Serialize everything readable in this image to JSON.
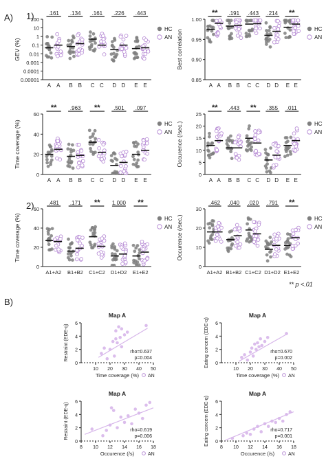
{
  "labels": {
    "panel_a": "A)",
    "sub_1": "1)",
    "sub_2": "2)",
    "panel_b": "B)",
    "significance_note": "** p <.01"
  },
  "colors": {
    "hc": "#7f7f7f",
    "an": "#d7b6ea",
    "an_edge": "#b98fd6",
    "line": "#111111"
  },
  "chart_data": [
    {
      "id": "gev",
      "type": "scatter",
      "ylabel": "GEV (%)",
      "scale": "log",
      "ylim": [
        1e-05,
        100
      ],
      "yticks": [
        "0.00001",
        "0.0001",
        "0.001",
        "0.01",
        "0.1",
        "1",
        "10",
        "100"
      ],
      "categories": [
        "A",
        "A",
        "B",
        "B",
        "C",
        "C",
        "D",
        "D",
        "E",
        "E"
      ],
      "pairs": [
        ".161",
        ".134",
        ".161",
        ".226",
        ".443"
      ],
      "legend": [
        "HC",
        "AN"
      ],
      "series": [
        {
          "name": "HC",
          "medians": [
            0.05,
            0.07,
            0.5,
            0.03,
            0.04
          ]
        },
        {
          "name": "AN",
          "medians": [
            0.1,
            0.15,
            0.1,
            0.1,
            0.05
          ]
        }
      ]
    },
    {
      "id": "bestcorr",
      "type": "scatter",
      "ylabel": "Best correlation",
      "ylim": [
        0.85,
        1.0
      ],
      "yticks": [
        "0.85",
        "0.90",
        "0.95",
        "1.00"
      ],
      "categories": [
        "A",
        "A",
        "B",
        "B",
        "C",
        "C",
        "D",
        "D",
        "E",
        "E"
      ],
      "pairs": [
        "**",
        ".191",
        ".443",
        ".214",
        "**"
      ],
      "legend": [
        "HC",
        "AN"
      ],
      "series": [
        {
          "name": "HC",
          "medians": [
            0.975,
            0.983,
            0.988,
            0.96,
            0.98
          ]
        },
        {
          "name": "AN",
          "medians": [
            0.99,
            0.985,
            0.989,
            0.97,
            0.988
          ]
        }
      ]
    },
    {
      "id": "timecov1",
      "type": "scatter",
      "ylabel": "Time coverage (%)",
      "ylim": [
        0,
        60
      ],
      "yticks": [
        "0",
        "20",
        "40",
        "60"
      ],
      "categories": [
        "A",
        "A",
        "B",
        "B",
        "C",
        "C",
        "D",
        "D",
        "E",
        "E"
      ],
      "pairs": [
        "**",
        ".963",
        "**",
        ".501",
        ".097"
      ],
      "legend": [
        "HC",
        "AN"
      ],
      "series": [
        {
          "name": "HC",
          "medians": [
            20,
            18,
            32,
            9,
            20
          ]
        },
        {
          "name": "AN",
          "medians": [
            25,
            19,
            22,
            12,
            24
          ]
        }
      ]
    },
    {
      "id": "occ1",
      "type": "scatter",
      "ylabel": "Occurence (/sec.)",
      "ylim": [
        0,
        25
      ],
      "yticks": [
        "0",
        "5",
        "10",
        "15",
        "20",
        "25"
      ],
      "categories": [
        "A",
        "A",
        "B",
        "B",
        "C",
        "C",
        "D",
        "D",
        "E",
        "E"
      ],
      "pairs": [
        "**",
        ".443",
        "**",
        ".355",
        ".011"
      ],
      "legend": [
        "HC",
        "AN"
      ],
      "series": [
        {
          "name": "HC",
          "medians": [
            12,
            11,
            15,
            6,
            12
          ]
        },
        {
          "name": "AN",
          "medians": [
            14,
            11,
            13,
            8,
            14
          ]
        }
      ]
    },
    {
      "id": "timecov2",
      "type": "scatter",
      "ylabel": "Time coverage (%)",
      "ylim": [
        0,
        60
      ],
      "yticks": [
        "0",
        "20",
        "40",
        "60"
      ],
      "categories": [
        "A1+A2",
        "B1+B2",
        "C1+C2",
        "D1+D2",
        "E1+E2"
      ],
      "pairs": [
        ".481",
        ".171",
        "**",
        "1.000",
        "**"
      ],
      "legend": [
        "HC",
        "AN"
      ],
      "series": [
        {
          "name": "HC",
          "medians": [
            27,
            16,
            31,
            11,
            11
          ]
        },
        {
          "name": "AN",
          "medians": [
            26,
            19,
            21,
            13,
            15
          ]
        }
      ]
    },
    {
      "id": "occ2",
      "type": "scatter",
      "ylabel": "Occurence (/sec.)",
      "ylim": [
        0,
        30
      ],
      "yticks": [
        "0",
        "10",
        "20",
        "30"
      ],
      "categories": [
        "A1+A2",
        "B1+B2",
        "C1+C2",
        "D1+D2",
        "E1+E2"
      ],
      "pairs": [
        ".462",
        ".040",
        ".020",
        ".791",
        "**"
      ],
      "legend": [
        "HC",
        "AN"
      ],
      "series": [
        {
          "name": "HC",
          "medians": [
            18,
            14,
            19,
            9,
            11
          ]
        },
        {
          "name": "AN",
          "medians": [
            18,
            16,
            17,
            11,
            15
          ]
        }
      ]
    },
    {
      "id": "b1",
      "type": "scatter",
      "title": "Map A",
      "xlabel": "Time coverage (%)",
      "ylabel": "Restraint (EDE-q)",
      "xlim": [
        0,
        50
      ],
      "ylim": [
        0,
        6
      ],
      "xticks": [
        "10",
        "20",
        "30",
        "40",
        "50"
      ],
      "yticks": [
        "0",
        "2",
        "4",
        "6"
      ],
      "stat_rho": "rho=0.637",
      "stat_p": "p=0.004",
      "legend": "AN",
      "x": [
        14,
        16,
        18,
        20,
        22,
        23,
        24,
        24,
        25,
        26,
        27,
        28,
        28,
        30,
        32,
        45
      ],
      "y": [
        1.4,
        2.2,
        0.6,
        2.0,
        3.2,
        1.0,
        4.8,
        3.6,
        3.0,
        5.4,
        3.8,
        2.4,
        5.1,
        4.2,
        4.6,
        5.6
      ],
      "fit": [
        [
          12,
          0.8
        ],
        [
          46,
          5.2
        ]
      ]
    },
    {
      "id": "b2",
      "type": "scatter",
      "title": "Map A",
      "xlabel": "Time coverage (%)",
      "ylabel": "Eating concern (EDE-q)",
      "xlim": [
        0,
        50
      ],
      "ylim": [
        0,
        6
      ],
      "xticks": [
        "10",
        "20",
        "30",
        "40",
        "50"
      ],
      "yticks": [
        "0",
        "2",
        "4",
        "6"
      ],
      "stat_rho": "rho=0.670",
      "stat_p": "p=0.002",
      "legend": "AN",
      "x": [
        14,
        16,
        18,
        20,
        21,
        22,
        23,
        24,
        25,
        26,
        27,
        28,
        30,
        32,
        45
      ],
      "y": [
        0.8,
        1.2,
        0.4,
        1.6,
        2.2,
        1.0,
        2.8,
        2.0,
        3.0,
        2.4,
        3.6,
        2.6,
        3.2,
        3.8,
        4.4
      ],
      "fit": [
        [
          12,
          0.2
        ],
        [
          46,
          4.4
        ]
      ]
    },
    {
      "id": "b3",
      "type": "scatter",
      "title": "Map A",
      "xlabel": "Occurence (/s)",
      "ylabel": "Restraint (EDE-q)",
      "xlim": [
        8,
        18
      ],
      "ylim": [
        0,
        6
      ],
      "xticks": [
        "8",
        "10",
        "12",
        "14",
        "16",
        "18"
      ],
      "yticks": [
        "0",
        "2",
        "4",
        "6"
      ],
      "stat_rho": "rho=0.619",
      "stat_p": "p=0.006",
      "legend": "AN",
      "x": [
        9.5,
        11,
        11.5,
        12,
        12.5,
        13,
        13.5,
        14,
        14.5,
        15,
        15.5,
        16,
        16.5,
        17,
        17.5,
        12.2
      ],
      "y": [
        1.8,
        0.8,
        1.6,
        2.4,
        4.6,
        2.0,
        3.6,
        2.8,
        3.8,
        2.6,
        4.8,
        4.2,
        3.4,
        5.4,
        5.8,
        5.0
      ],
      "fit": [
        [
          8.5,
          1.0
        ],
        [
          18,
          5.0
        ]
      ]
    },
    {
      "id": "b4",
      "type": "scatter",
      "title": "Map A",
      "xlabel": "Occurence (/s)",
      "ylabel": "Eating concern (EDE-q)",
      "xlim": [
        8,
        18
      ],
      "ylim": [
        0,
        6
      ],
      "xticks": [
        "8",
        "10",
        "12",
        "14",
        "16",
        "18"
      ],
      "yticks": [
        "0",
        "2",
        "4",
        "6"
      ],
      "stat_rho": "rho=0.717",
      "stat_p": "p=0.001",
      "legend": "AN",
      "x": [
        9.5,
        11,
        11.5,
        12,
        12.5,
        13,
        13.5,
        14,
        14.5,
        15,
        15.5,
        16,
        16.5,
        17,
        17.5
      ],
      "y": [
        0.4,
        0.8,
        1.2,
        1.0,
        1.8,
        2.2,
        1.4,
        2.6,
        2.2,
        3.0,
        2.8,
        3.4,
        3.0,
        4.0,
        4.4
      ],
      "fit": [
        [
          8.5,
          0.1
        ],
        [
          18,
          4.4
        ]
      ]
    }
  ]
}
